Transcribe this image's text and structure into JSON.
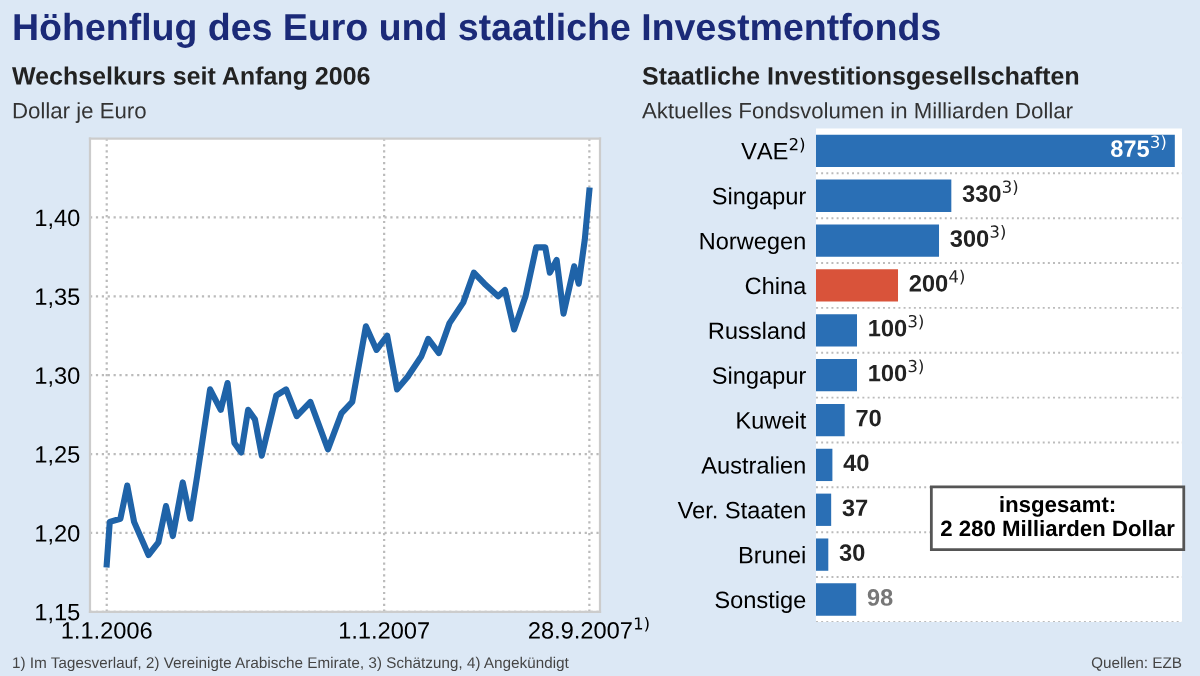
{
  "chart_data": [
    {
      "type": "line",
      "title": "Wechselkurs seit Anfang 2006",
      "subtitle": "Dollar je Euro",
      "annotations": [
        "Höhenflug des Euro und staatliche Investmentfonds",
        "1) Im Tagesverlauf, 2) Vereinigte Arabische Emirate, 3) Schätzung, 4) Angekündigt"
      ],
      "x": [
        "2006-01-01",
        "2006-01-05",
        "2006-01-19",
        "2006-01-28",
        "2006-02-06",
        "2006-02-25",
        "2006-03-10",
        "2006-03-20",
        "2006-03-29",
        "2006-04-11",
        "2006-04-21",
        "2006-04-30",
        "2006-05-17",
        "2006-05-31",
        "2006-06-09",
        "2006-06-18",
        "2006-06-27",
        "2006-07-06",
        "2006-07-15",
        "2006-07-24",
        "2006-08-12",
        "2006-08-25",
        "2006-09-08",
        "2006-09-26",
        "2006-10-19",
        "2006-11-06",
        "2006-11-20",
        "2006-12-08",
        "2006-12-22",
        "2007-01-05",
        "2007-01-18",
        "2007-02-01",
        "2007-02-19",
        "2007-02-28",
        "2007-03-14",
        "2007-03-28",
        "2007-04-15",
        "2007-04-29",
        "2007-05-13",
        "2007-05-31",
        "2007-06-09",
        "2007-06-21",
        "2007-07-06",
        "2007-07-20",
        "2007-08-01",
        "2007-08-07",
        "2007-08-16",
        "2007-08-25",
        "2007-09-08",
        "2007-09-14",
        "2007-09-22",
        "2007-09-28"
      ],
      "series": [
        {
          "color": "#1f63a8",
          "values": [
            1.18,
            1.207,
            1.209,
            1.23,
            1.207,
            1.186,
            1.194,
            1.217,
            1.198,
            1.232,
            1.209,
            1.236,
            1.291,
            1.278,
            1.295,
            1.257,
            1.251,
            1.278,
            1.272,
            1.249,
            1.287,
            1.291,
            1.274,
            1.283,
            1.253,
            1.276,
            1.283,
            1.331,
            1.316,
            1.325,
            1.291,
            1.299,
            1.312,
            1.323,
            1.314,
            1.333,
            1.346,
            1.365,
            1.358,
            1.35,
            1.354,
            1.329,
            1.35,
            1.381,
            1.381,
            1.365,
            1.373,
            1.339,
            1.369,
            1.358,
            1.386,
            1.417
          ]
        }
      ],
      "xlim": [
        "2005-12-10",
        "2007-10-12"
      ],
      "xticks": [
        {
          "value": "2006-01-01",
          "label": "1.1.2006"
        },
        {
          "value": "2007-01-01",
          "label": "1.1.2007"
        },
        {
          "value": "2007-09-28",
          "label": "28.9.2007$^{1)}$"
        }
      ],
      "ylim": [
        1.15,
        1.45
      ],
      "yticks": [
        {
          "value": 1.15,
          "label": "1,15"
        },
        {
          "value": 1.2,
          "label": "1,20"
        },
        {
          "value": 1.25,
          "label": "1,25"
        },
        {
          "value": 1.3,
          "label": "1,30"
        },
        {
          "value": 1.35,
          "label": "1,35"
        },
        {
          "value": 1.4,
          "label": "1,40"
        }
      ],
      "grid": true,
      "line_style": "solid",
      "marker": "none"
    },
    {
      "type": "bar",
      "orientation": "horizontal",
      "title": "Staatliche Investitionsgesellschaften",
      "subtitle": "Aktuelles Fondsvolumen in Milliarden Dollar",
      "categories": [
        "VAE$^{2)}$",
        "Singapur",
        "Norwegen",
        "China",
        "Russland",
        "Singapur",
        "Kuweit",
        "Australien",
        "Ver. Staaten",
        "Brunei",
        "Sonstige"
      ],
      "values": [
        875,
        330,
        300,
        200,
        100,
        100,
        70,
        40,
        37,
        30,
        98
      ],
      "colors": [
        "#2a6fb5",
        "#2a6fb5",
        "#2a6fb5",
        "#d9533a",
        "#2a6fb5",
        "#2a6fb5",
        "#2a6fb5",
        "#2a6fb5",
        "#2a6fb5",
        "#2a6fb5",
        "#2a6fb5"
      ],
      "value_labels": [
        "875$^{3)}$",
        "330$^{3)}$",
        "300$^{3)}$",
        "200$^{4)}$",
        "100$^{3)}$",
        "100$^{3)}$",
        "70",
        "40",
        "37",
        "30",
        "98"
      ],
      "annotations": [
        "insgesamt:\n2 280 Milliarden Dollar",
        "Quellen: EZB"
      ],
      "tick_labels": "y",
      "grid": false,
      "legend": false
    }
  ]
}
